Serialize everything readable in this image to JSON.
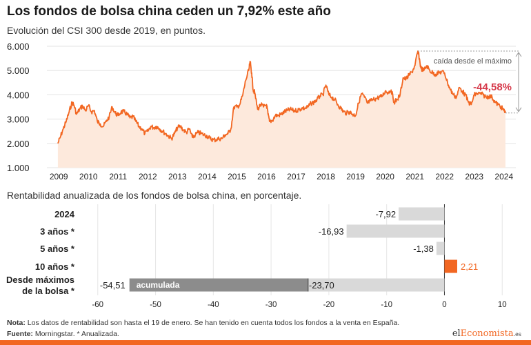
{
  "title": "Los fondos de bolsa china ceden un 7,92% este año",
  "subtitle": "Evolución del CSI 300 desde 2019, en puntos.",
  "subtitle2": "Rentabilidad anualizada de los fondos de bolsa china, en porcentaje.",
  "footer": {
    "note_label": "Nota:",
    "note_text": "Los datos de rentabilidad son hasta el 19 de enero. Se han tenido en cuenta todos los fondos a la venta en España.",
    "source_label": "Fuente:",
    "source_text": "Morningstar. * Anualizada."
  },
  "logo": {
    "part1": "el",
    "part2": "Economista",
    "part3": ".es"
  },
  "colors": {
    "accent": "#f26722",
    "area_fill": "#fde9dc",
    "negative": "#d9d9d9",
    "cumulative": "#8c8c8c",
    "drop": "#d63a4b"
  },
  "chart_data": [
    {
      "type": "area",
      "title": "Evolución del CSI 300 desde 2019, en puntos.",
      "yticks": [
        "6.000",
        "5.000",
        "4.000",
        "3.000",
        "2.000",
        "1.000"
      ],
      "ytick_values": [
        6000,
        5000,
        4000,
        3000,
        2000,
        1000
      ],
      "ylim": [
        1000,
        6000
      ],
      "xticks": [
        "2009",
        "2010",
        "2011",
        "2012",
        "2013",
        "2014",
        "2015",
        "2016",
        "2017",
        "2018",
        "2019",
        "2020",
        "2021",
        "2022",
        "2023",
        "2024"
      ],
      "xtick_values": [
        2009,
        2010,
        2011,
        2012,
        2013,
        2014,
        2015,
        2016,
        2017,
        2018,
        2019,
        2020,
        2021,
        2022,
        2023,
        2024
      ],
      "xlim": [
        2008.6,
        2024.4
      ],
      "annotation_label": "caída desde el máximo",
      "annotation_value": "-44,58%",
      "series": [
        {
          "x": [
            2008.97,
            2009.05,
            2009.15,
            2009.25,
            2009.35,
            2009.45,
            2009.52,
            2009.6,
            2009.7,
            2009.8,
            2009.9,
            2010.0,
            2010.1,
            2010.2,
            2010.3,
            2010.4,
            2010.5,
            2010.6,
            2010.7,
            2010.8,
            2010.9,
            2011.0,
            2011.1,
            2011.2,
            2011.3,
            2011.4,
            2011.5,
            2011.6,
            2011.7,
            2011.8,
            2011.9,
            2012.0,
            2012.1,
            2012.2,
            2012.3,
            2012.4,
            2012.5,
            2012.6,
            2012.7,
            2012.8,
            2012.9,
            2013.0,
            2013.1,
            2013.2,
            2013.3,
            2013.4,
            2013.5,
            2013.6,
            2013.7,
            2013.8,
            2013.9,
            2014.0,
            2014.1,
            2014.2,
            2014.3,
            2014.4,
            2014.5,
            2014.6,
            2014.7,
            2014.8,
            2014.9,
            2015.0,
            2015.1,
            2015.2,
            2015.3,
            2015.4,
            2015.45,
            2015.5,
            2015.55,
            2015.6,
            2015.7,
            2015.8,
            2015.9,
            2016.0,
            2016.05,
            2016.1,
            2016.2,
            2016.3,
            2016.4,
            2016.5,
            2016.6,
            2016.7,
            2016.8,
            2016.9,
            2017.0,
            2017.1,
            2017.2,
            2017.3,
            2017.4,
            2017.5,
            2017.6,
            2017.7,
            2017.8,
            2017.9,
            2018.0,
            2018.1,
            2018.2,
            2018.3,
            2018.4,
            2018.5,
            2018.6,
            2018.7,
            2018.8,
            2018.9,
            2019.0,
            2019.1,
            2019.2,
            2019.3,
            2019.4,
            2019.5,
            2019.6,
            2019.7,
            2019.8,
            2019.9,
            2020.0,
            2020.1,
            2020.2,
            2020.3,
            2020.4,
            2020.5,
            2020.6,
            2020.7,
            2020.8,
            2020.9,
            2021.0,
            2021.1,
            2021.15,
            2021.2,
            2021.3,
            2021.4,
            2021.5,
            2021.6,
            2021.7,
            2021.8,
            2021.9,
            2022.0,
            2022.1,
            2022.2,
            2022.3,
            2022.4,
            2022.5,
            2022.6,
            2022.7,
            2022.8,
            2022.9,
            2023.0,
            2023.1,
            2023.2,
            2023.3,
            2023.4,
            2023.5,
            2023.6,
            2023.7,
            2023.8,
            2023.9,
            2024.0,
            2024.05
          ],
          "values": [
            2000,
            2250,
            2600,
            2900,
            3300,
            3700,
            3550,
            3200,
            3400,
            3550,
            3350,
            3550,
            3300,
            3350,
            2900,
            2800,
            2700,
            2900,
            3100,
            3500,
            3250,
            3150,
            3300,
            3300,
            3200,
            3050,
            3100,
            2900,
            2700,
            2600,
            2400,
            2500,
            2700,
            2650,
            2700,
            2600,
            2500,
            2400,
            2300,
            2200,
            2400,
            2650,
            2700,
            2550,
            2450,
            2600,
            2250,
            2350,
            2450,
            2400,
            2350,
            2300,
            2200,
            2150,
            2150,
            2200,
            2200,
            2350,
            2400,
            2600,
            3500,
            3500,
            3600,
            4000,
            4600,
            5000,
            5350,
            4900,
            4200,
            4100,
            3400,
            3600,
            3500,
            3600,
            3200,
            2900,
            2950,
            3150,
            3150,
            3200,
            3300,
            3350,
            3400,
            3350,
            3350,
            3400,
            3450,
            3450,
            3500,
            3650,
            3700,
            3800,
            3950,
            4000,
            4400,
            4000,
            3900,
            3800,
            3600,
            3450,
            3300,
            3250,
            3300,
            3200,
            3150,
            3650,
            4050,
            3900,
            3650,
            3750,
            3800,
            3850,
            3900,
            3950,
            4150,
            4100,
            4200,
            3700,
            3800,
            4000,
            4700,
            4650,
            4800,
            4950,
            5200,
            5800,
            5500,
            5100,
            5000,
            5200,
            5000,
            4900,
            4850,
            4900,
            4950,
            4900,
            4500,
            4200,
            4000,
            3900,
            4300,
            4150,
            4000,
            3700,
            3600,
            4000,
            4050,
            4050,
            4000,
            3900,
            3950,
            3900,
            3700,
            3600,
            3500,
            3350,
            3250
          ]
        }
      ]
    },
    {
      "type": "bar",
      "orientation": "horizontal",
      "title": "Rentabilidad anualizada de los fondos de bolsa china, en porcentaje.",
      "categories": [
        "2024",
        "3 años *",
        "5 años *",
        "10 años *",
        "Desde máximos de la bolsa *"
      ],
      "category_lines": [
        [
          "2024"
        ],
        [
          "3 años *"
        ],
        [
          "5 años *"
        ],
        [
          "10 años *"
        ],
        [
          "Desde máximos",
          "de la bolsa *"
        ]
      ],
      "values": [
        -7.92,
        -16.93,
        -1.38,
        2.21,
        -23.7
      ],
      "value_labels": [
        "-7,92",
        "-16,93",
        "-1,38",
        "2,21",
        "-23,70"
      ],
      "cumulative": {
        "value": -54.51,
        "value_label": "-54,51",
        "label": "acumulada"
      },
      "xticks": [
        "-60",
        "-50",
        "-40",
        "-30",
        "-20",
        "-10",
        "0",
        "10"
      ],
      "xtick_values": [
        -60,
        -50,
        -40,
        -30,
        -20,
        -10,
        0,
        10
      ],
      "xlim": [
        -62,
        12
      ]
    }
  ]
}
